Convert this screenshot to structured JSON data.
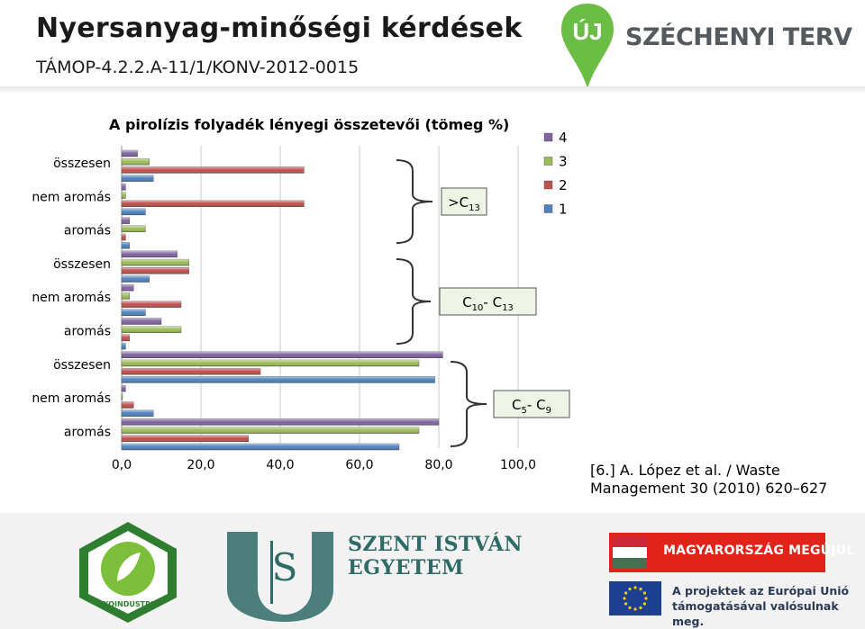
{
  "header": {
    "title": "Nyersanyag-minőségi kérdések",
    "subtitle": "TÁMOP-4.2.2.A-11/1/KONV-2012-0015",
    "logo_text": "SZÉCHENYI TERV",
    "logo_pin_text": "ÚJ"
  },
  "chart_data": {
    "type": "bar",
    "orientation": "horizontal",
    "title": "A pirolízis folyadék lényegi összetevői (tömeg %)",
    "categories": [
      "összesen",
      "nem aromás",
      "aromás",
      "összesen",
      "nem aromás",
      "aromás",
      "összesen",
      "nem aromás",
      "aromás"
    ],
    "groups": [
      {
        "label": ">C",
        "sub": "13",
        "sub2": "",
        "label2": ""
      },
      {
        "label": "C",
        "sub": "10",
        "label2": "- C",
        "sub2": "13"
      },
      {
        "label": "C",
        "sub": "5",
        "label2": "- C",
        "sub2": "9"
      }
    ],
    "series": [
      {
        "name": "4",
        "color": "#8064a2",
        "values": [
          4,
          1,
          2,
          14,
          3,
          10,
          81,
          1,
          80
        ]
      },
      {
        "name": "3",
        "color": "#9bbb59",
        "values": [
          7,
          1,
          6,
          17,
          2,
          15,
          75,
          0,
          75
        ]
      },
      {
        "name": "2",
        "color": "#c0504d",
        "values": [
          46,
          46,
          1,
          17,
          15,
          2,
          35,
          3,
          32
        ]
      },
      {
        "name": "1",
        "color": "#4f81bd",
        "values": [
          8,
          6,
          2,
          7,
          6,
          1,
          79,
          8,
          70
        ]
      }
    ],
    "xlim": [
      0,
      100
    ],
    "xticks": [
      "0,0",
      "20,0",
      "40,0",
      "60,0",
      "80,0",
      "100,0"
    ],
    "grid": true,
    "legend_position": "right"
  },
  "reference": {
    "line1": "[6.] A. López et al. / Waste",
    "line2": "Management 30 (2010) 620–627"
  },
  "footer": {
    "university_line1": "SZENT ISTVÁN",
    "university_line2": "EGYETEM",
    "banner_text": "MAGYARORSZÁG MEGÚJUL",
    "eu_line1": "A projektek az Európai Unió",
    "eu_line2": "támogatásával valósulnak meg.",
    "oko_text": "ÖKOINDUSTRIA"
  }
}
